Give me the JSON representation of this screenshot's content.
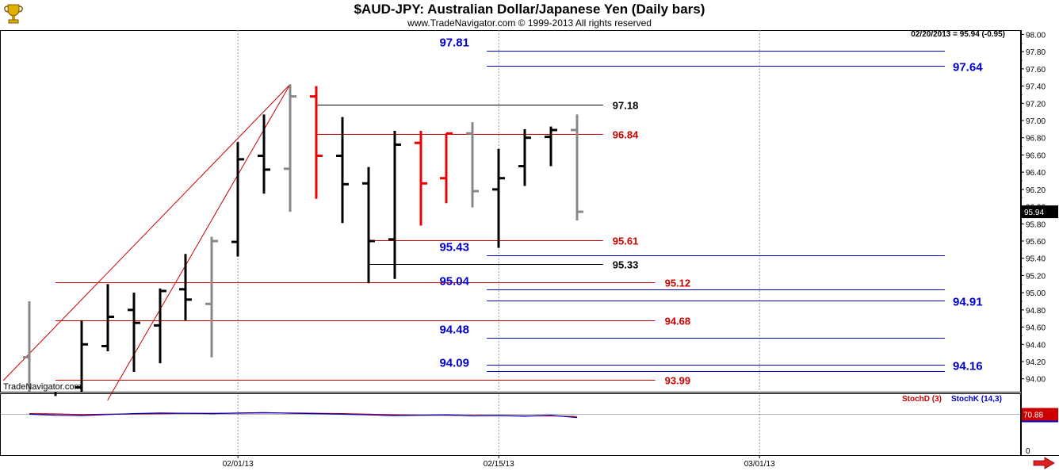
{
  "header": {
    "title": "$AUD-JPY:  Australian Dollar/Japanese Yen  (Daily bars)",
    "copyright": "www.TradeNavigator.com © 1999-2013 All rights reserved",
    "watermark": "TradeNavigator.com"
  },
  "quote_readout": "02/20/2013 = 95.94 (-0.95)",
  "last_price_label": "95.94",
  "indicator": {
    "stochd_label": "StochD (3)",
    "stochk_label": "StochK (14,3)",
    "value_label": "70.88",
    "scale_bottom_label": "0",
    "stochd_color": "#cc0000",
    "stochk_color": "#0000cc"
  },
  "colors": {
    "up_bar": "#000000",
    "down_bar_red": "#ee0000",
    "neutral_bar": "#888888",
    "blue_level": "#0000cc",
    "red_level": "#cc0000",
    "black_level": "#000000"
  },
  "icons": [
    "trophy-logo-icon",
    "scroll-right-arrow-icon"
  ],
  "chart_data": {
    "type": "ohlc",
    "title": "$AUD-JPY:  Australian Dollar/Japanese Yen  (Daily bars)",
    "xlabel": "",
    "ylabel": "",
    "ylim": [
      93.85,
      98.05
    ],
    "y_ticks": [
      "94.00",
      "94.20",
      "94.40",
      "94.60",
      "94.80",
      "95.00",
      "95.20",
      "95.40",
      "95.60",
      "95.80",
      "96.00",
      "96.20",
      "96.40",
      "96.60",
      "96.80",
      "97.00",
      "97.20",
      "97.40",
      "97.60",
      "97.80",
      "98.00"
    ],
    "x_ticks": [
      {
        "label": "02/01/13",
        "index": 8
      },
      {
        "label": "02/15/13",
        "index": 18
      },
      {
        "label": "03/01/13",
        "index": 28
      }
    ],
    "grid": "vertical",
    "bars": [
      {
        "i": 0,
        "o": 94.25,
        "h": 94.9,
        "l": 93.8,
        "c": 93.8,
        "color": "neutral"
      },
      {
        "i": 1,
        "o": 93.75,
        "h": 93.8,
        "l": 93.5,
        "c": 93.7,
        "color": "up"
      },
      {
        "i": 2,
        "o": 93.9,
        "h": 94.68,
        "l": 93.85,
        "c": 94.4,
        "color": "up"
      },
      {
        "i": 3,
        "o": 94.38,
        "h": 95.1,
        "l": 94.32,
        "c": 94.72,
        "color": "up"
      },
      {
        "i": 4,
        "o": 94.8,
        "h": 95.0,
        "l": 94.08,
        "c": 94.65,
        "color": "up"
      },
      {
        "i": 5,
        "o": 94.62,
        "h": 95.05,
        "l": 94.18,
        "c": 95.02,
        "color": "up"
      },
      {
        "i": 6,
        "o": 95.04,
        "h": 95.45,
        "l": 94.68,
        "c": 94.92,
        "color": "up"
      },
      {
        "i": 7,
        "o": 94.87,
        "h": 95.65,
        "l": 94.25,
        "c": 95.6,
        "color": "neutral"
      },
      {
        "i": 8,
        "o": 95.59,
        "h": 96.75,
        "l": 95.42,
        "c": 96.55,
        "color": "up"
      },
      {
        "i": 9,
        "o": 96.59,
        "h": 97.07,
        "l": 96.15,
        "c": 96.43,
        "color": "up"
      },
      {
        "i": 10,
        "o": 96.44,
        "h": 97.42,
        "l": 95.94,
        "c": 97.28,
        "color": "neutral"
      },
      {
        "i": 11,
        "o": 97.28,
        "h": 97.4,
        "l": 96.09,
        "c": 96.59,
        "color": "down"
      },
      {
        "i": 12,
        "o": 96.59,
        "h": 97.04,
        "l": 95.81,
        "c": 96.26,
        "color": "up"
      },
      {
        "i": 13,
        "o": 96.27,
        "h": 96.46,
        "l": 95.11,
        "c": 95.6,
        "color": "up"
      },
      {
        "i": 14,
        "o": 95.62,
        "h": 96.88,
        "l": 95.16,
        "c": 96.72,
        "color": "up"
      },
      {
        "i": 15,
        "o": 96.74,
        "h": 96.88,
        "l": 95.78,
        "c": 96.27,
        "color": "down"
      },
      {
        "i": 16,
        "o": 96.33,
        "h": 96.85,
        "l": 96.04,
        "c": 96.85,
        "color": "down"
      },
      {
        "i": 17,
        "o": 96.85,
        "h": 96.98,
        "l": 95.99,
        "c": 96.18,
        "color": "neutral"
      },
      {
        "i": 18,
        "o": 96.2,
        "h": 96.67,
        "l": 95.52,
        "c": 96.33,
        "color": "up"
      },
      {
        "i": 19,
        "o": 96.47,
        "h": 96.9,
        "l": 96.24,
        "c": 96.8,
        "color": "up"
      },
      {
        "i": 20,
        "o": 96.81,
        "h": 96.93,
        "l": 96.47,
        "c": 96.89,
        "color": "up"
      },
      {
        "i": 21,
        "o": 96.89,
        "h": 97.07,
        "l": 95.84,
        "c": 95.94,
        "color": "neutral"
      }
    ],
    "levels": [
      {
        "value": 97.81,
        "label": "97.81",
        "color": "blue",
        "x_from": 18,
        "x_to": 34,
        "label_pos": "left"
      },
      {
        "value": 97.64,
        "label": "97.64",
        "color": "blue",
        "x_from": 18,
        "x_to": 34,
        "label_pos": "right"
      },
      {
        "value": 97.18,
        "label": "97.18",
        "color": "black",
        "x_from": 11,
        "x_to": 22,
        "label_pos": "end"
      },
      {
        "value": 96.84,
        "label": "96.84",
        "color": "red",
        "x_from": 11,
        "x_to": 22,
        "label_pos": "end"
      },
      {
        "value": 95.61,
        "label": "95.61",
        "color": "red",
        "x_from": 13,
        "x_to": 22,
        "label_pos": "end"
      },
      {
        "value": 95.43,
        "label": "95.43",
        "color": "blue",
        "x_from": 18,
        "x_to": 34,
        "label_pos": "left"
      },
      {
        "value": 95.33,
        "label": "95.33",
        "color": "black",
        "x_from": 13,
        "x_to": 22,
        "label_pos": "end"
      },
      {
        "value": 95.12,
        "label": "95.12",
        "color": "red",
        "x_from": 1,
        "x_to": 24,
        "label_pos": "end"
      },
      {
        "value": 95.04,
        "label": "95.04",
        "color": "blue",
        "x_from": 18,
        "x_to": 34,
        "label_pos": "left"
      },
      {
        "value": 94.91,
        "label": "94.91",
        "color": "blue",
        "x_from": 18,
        "x_to": 34,
        "label_pos": "right"
      },
      {
        "value": 94.68,
        "label": "94.68",
        "color": "red",
        "x_from": 1,
        "x_to": 24,
        "label_pos": "end"
      },
      {
        "value": 94.48,
        "label": "94.48",
        "color": "blue",
        "x_from": 18,
        "x_to": 34,
        "label_pos": "left"
      },
      {
        "value": 94.16,
        "label": "94.16",
        "color": "blue",
        "x_from": 18,
        "x_to": 34,
        "label_pos": "right"
      },
      {
        "value": 94.09,
        "label": "94.09",
        "color": "blue",
        "x_from": 18,
        "x_to": 34,
        "label_pos": "left"
      },
      {
        "value": 93.99,
        "label": "93.99",
        "color": "red",
        "x_from": 1,
        "x_to": 24,
        "label_pos": "end"
      }
    ],
    "trendlines": [
      {
        "x1": -1,
        "y1": 93.98,
        "x2": 10,
        "y2": 97.42
      },
      {
        "x1": 3,
        "y1": 93.75,
        "x2": 10,
        "y2": 97.42
      }
    ],
    "stochastic": {
      "stochd": [
        72,
        71,
        69,
        70,
        71,
        72,
        73,
        73,
        73,
        74,
        74,
        73,
        72,
        70,
        68,
        67,
        67,
        66,
        66,
        65,
        65,
        63
      ],
      "stochk": [
        70,
        67,
        66,
        69,
        72,
        74,
        73,
        72,
        74,
        75,
        73,
        72,
        70,
        68,
        66,
        67,
        68,
        65,
        66,
        64,
        67,
        60
      ],
      "ylim": [
        0,
        100
      ],
      "level": 70.88
    }
  }
}
